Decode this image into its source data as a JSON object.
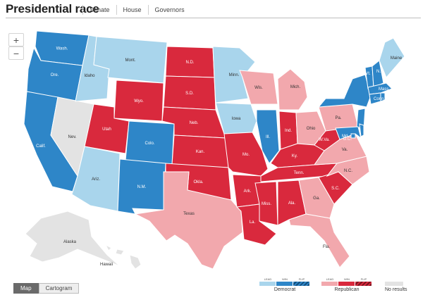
{
  "header": {
    "title": "Presidential race",
    "tabs": [
      "Senate",
      "House",
      "Governors"
    ]
  },
  "zoom": {
    "in": "+",
    "out": "−"
  },
  "view_toggle": {
    "map": "Map",
    "cartogram": "Cartogram"
  },
  "colors": {
    "dem_lead": "#a9d5ec",
    "dem_win": "#2e86c8",
    "rep_lead": "#f2a8ad",
    "rep_win": "#d9293d",
    "no_results": "#e3e3e3"
  },
  "legend": {
    "democrat": {
      "name": "Democrat",
      "lead": "LEAD",
      "win": "WIN",
      "flip": "FLIP"
    },
    "republican": {
      "name": "Republican",
      "lead": "LEAD",
      "win": "WIN",
      "flip": "FLIP"
    },
    "none": {
      "name": "No results"
    }
  },
  "states": {
    "wash": {
      "label": "Wash.",
      "status": "dem_win"
    },
    "ore": {
      "label": "Ore.",
      "status": "dem_win"
    },
    "calif": {
      "label": "Calif.",
      "status": "dem_win"
    },
    "idaho": {
      "label": "Idaho",
      "status": "dem_lead"
    },
    "nev": {
      "label": "Nev.",
      "status": "no_results"
    },
    "ariz": {
      "label": "Ariz.",
      "status": "dem_lead"
    },
    "utah": {
      "label": "Utah",
      "status": "rep_win"
    },
    "mont": {
      "label": "Mont.",
      "status": "dem_lead"
    },
    "wyo": {
      "label": "Wyo.",
      "status": "rep_win"
    },
    "colo": {
      "label": "Colo.",
      "status": "dem_win"
    },
    "nm": {
      "label": "N.M.",
      "status": "dem_win"
    },
    "nd": {
      "label": "N.D.",
      "status": "rep_win"
    },
    "sd": {
      "label": "S.D.",
      "status": "rep_win"
    },
    "neb": {
      "label": "Neb.",
      "status": "rep_win"
    },
    "kan": {
      "label": "Kan.",
      "status": "rep_win"
    },
    "okla": {
      "label": "Okla.",
      "status": "rep_win"
    },
    "texas": {
      "label": "Texas",
      "status": "rep_lead"
    },
    "minn": {
      "label": "Minn.",
      "status": "dem_lead"
    },
    "iowa": {
      "label": "Iowa",
      "status": "dem_lead"
    },
    "mo": {
      "label": "Mo.",
      "status": "rep_win"
    },
    "ark": {
      "label": "Ark.",
      "status": "rep_win"
    },
    "la": {
      "label": "La.",
      "status": "rep_win"
    },
    "wis": {
      "label": "Wis.",
      "status": "rep_lead"
    },
    "ill": {
      "label": "Ill.",
      "status": "dem_win"
    },
    "mich": {
      "label": "Mich.",
      "status": "rep_lead"
    },
    "ind": {
      "label": "Ind.",
      "status": "rep_win"
    },
    "ohio": {
      "label": "Ohio",
      "status": "rep_lead"
    },
    "ky": {
      "label": "Ky.",
      "status": "rep_win"
    },
    "tenn": {
      "label": "Tenn.",
      "status": "rep_win"
    },
    "miss": {
      "label": "Miss.",
      "status": "rep_win"
    },
    "ala": {
      "label": "Ala.",
      "status": "rep_win"
    },
    "ga": {
      "label": "Ga.",
      "status": "rep_lead"
    },
    "fla": {
      "label": "Fla.",
      "status": "rep_lead"
    },
    "sc": {
      "label": "S.C.",
      "status": "rep_win"
    },
    "nc": {
      "label": "N.C.",
      "status": "rep_lead"
    },
    "va": {
      "label": "Va.",
      "status": "rep_lead"
    },
    "wva": {
      "label": "W.Va.",
      "status": "rep_win"
    },
    "pa": {
      "label": "Pa.",
      "status": "rep_lead"
    },
    "ny": {
      "label": "N.Y.",
      "status": "dem_win"
    },
    "vt": {
      "label": "Vt.",
      "status": "dem_win"
    },
    "nh": {
      "label": "N.H.",
      "status": "dem_win"
    },
    "maine": {
      "label": "Maine",
      "status": "dem_lead"
    },
    "mass": {
      "label": "Mass.",
      "status": "dem_win"
    },
    "conn": {
      "label": "Conn.",
      "status": "dem_win"
    },
    "ri": {
      "label": "R.I.",
      "status": "dem_win"
    },
    "nj": {
      "label": "N.J.",
      "status": "dem_win"
    },
    "del": {
      "label": "Del.",
      "status": "dem_win"
    },
    "md": {
      "label": "Md.",
      "status": "dem_win"
    },
    "dc": {
      "label": "D.C.",
      "status": "dem_win"
    },
    "alaska": {
      "label": "Alaska",
      "status": "no_results"
    },
    "hawaii": {
      "label": "Hawaii",
      "status": "no_results"
    }
  }
}
